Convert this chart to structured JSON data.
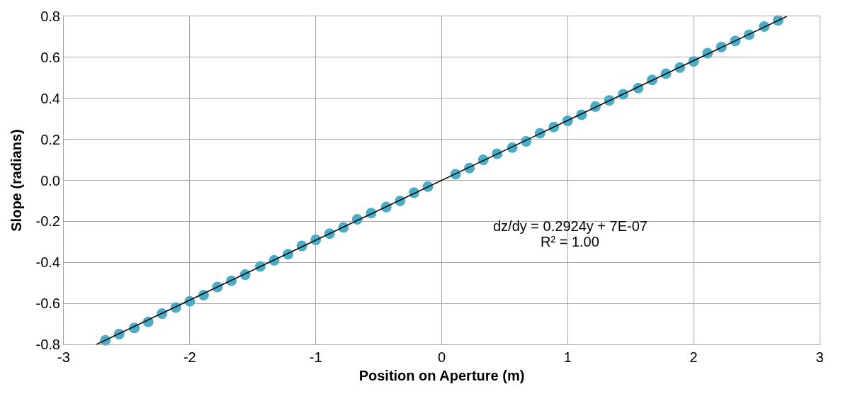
{
  "chart_data": {
    "type": "scatter",
    "xlabel": "Position on Aperture (m)",
    "ylabel": "Slope (radians)",
    "xlim": [
      -3,
      3
    ],
    "xticks": [
      -3,
      -2,
      -1,
      0,
      1,
      2,
      3
    ],
    "ylim": [
      -0.8,
      0.8
    ],
    "yticks": [
      -0.8,
      -0.6,
      -0.4,
      -0.2,
      {
        "value": 0,
        "label": "0.0"
      },
      0.2,
      0.4,
      0.6,
      0.8
    ],
    "grid": true,
    "marker": "circle",
    "annotations": [
      "dz/dy = 0.2924y + 7E-07",
      "R² = 1.00"
    ],
    "series": [
      {
        "color": "#4bacc6",
        "x": [
          -2.67,
          -2.56,
          -2.44,
          -2.33,
          -2.22,
          -2.11,
          -2.0,
          -1.89,
          -1.78,
          -1.67,
          -1.56,
          -1.44,
          -1.33,
          -1.22,
          -1.11,
          -1.0,
          -0.89,
          -0.78,
          -0.67,
          -0.56,
          -0.44,
          -0.33,
          -0.22,
          -0.11,
          0.11,
          0.22,
          0.33,
          0.44,
          0.56,
          0.67,
          0.78,
          0.89,
          1.0,
          1.11,
          1.22,
          1.33,
          1.44,
          1.56,
          1.67,
          1.78,
          1.89,
          2.0,
          2.11,
          2.22,
          2.33,
          2.44,
          2.56,
          2.67
        ],
        "values": [
          -0.78,
          -0.75,
          -0.72,
          -0.69,
          -0.65,
          -0.62,
          -0.59,
          -0.56,
          -0.52,
          -0.49,
          -0.46,
          -0.42,
          -0.39,
          -0.36,
          -0.32,
          -0.29,
          -0.26,
          -0.23,
          -0.19,
          -0.16,
          -0.13,
          -0.1,
          -0.06,
          -0.03,
          0.03,
          0.06,
          0.1,
          0.13,
          0.16,
          0.19,
          0.23,
          0.26,
          0.29,
          0.32,
          0.36,
          0.39,
          0.42,
          0.45,
          0.49,
          0.52,
          0.55,
          0.58,
          0.62,
          0.65,
          0.68,
          0.71,
          0.75,
          0.78
        ]
      },
      {
        "type": "line",
        "color": "#000000",
        "line_style": "solid",
        "marker": "none",
        "x": [
          -2.74,
          2.74
        ],
        "values": [
          -0.8,
          0.8
        ]
      }
    ]
  }
}
